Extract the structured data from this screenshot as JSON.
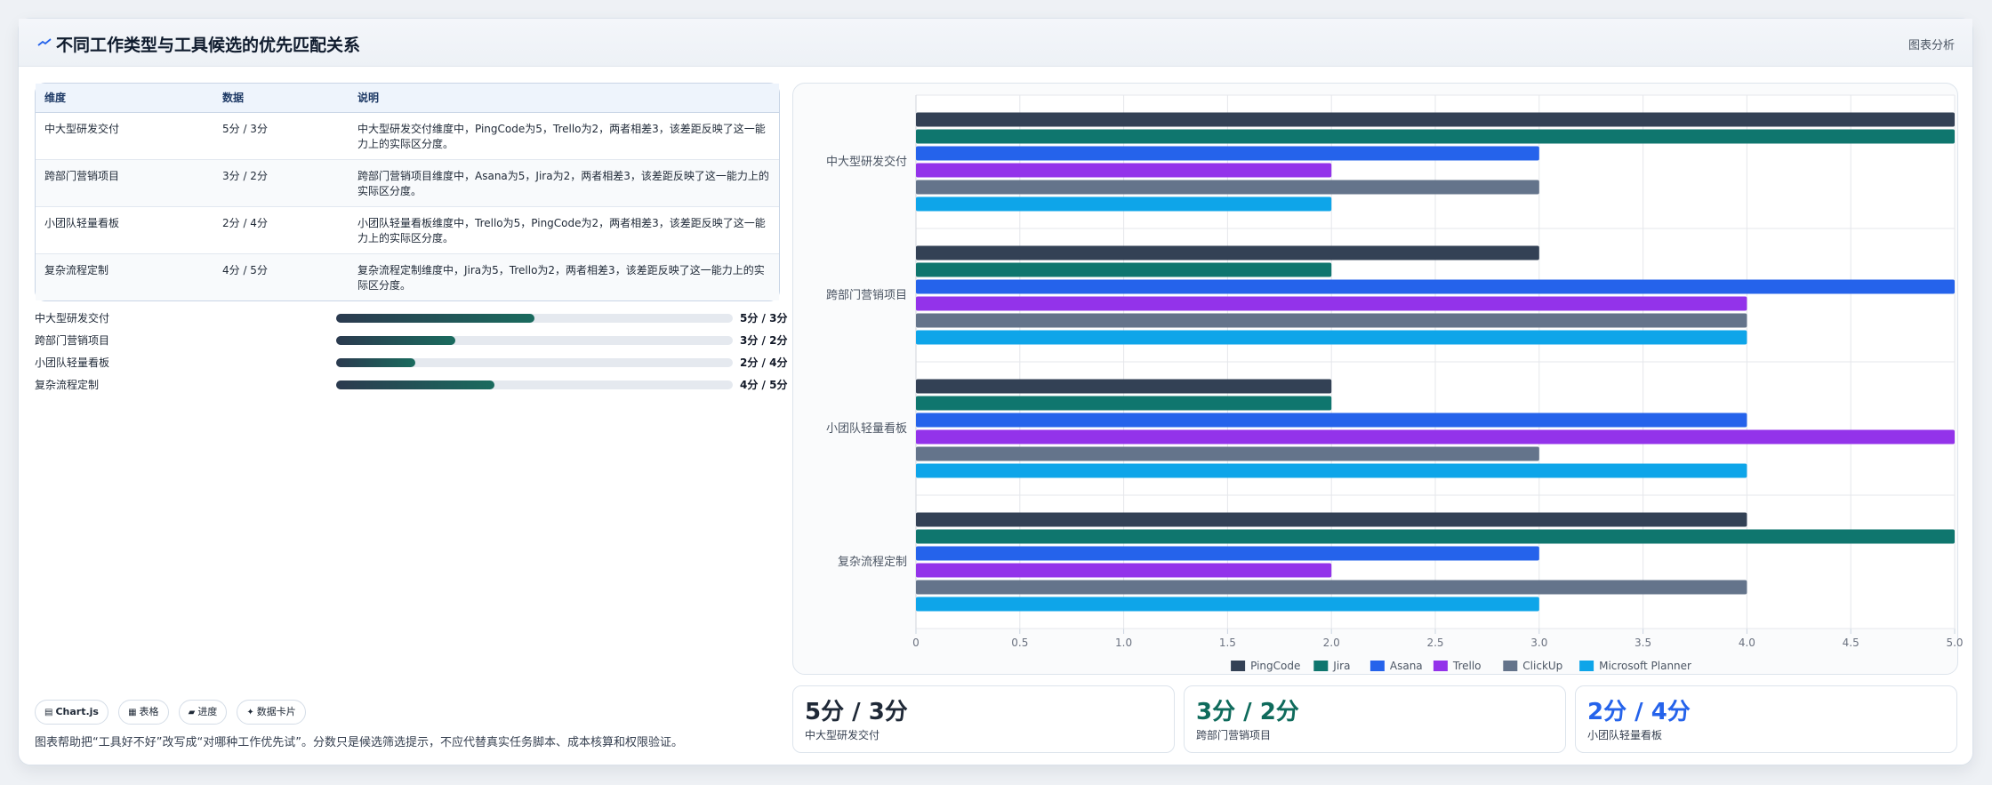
{
  "header": {
    "title": "不同工作类型与工具候选的优先匹配关系",
    "analysis_label": "图表分析"
  },
  "table": {
    "headers": [
      "维度",
      "数据",
      "说明"
    ],
    "rows": [
      {
        "dim": "中大型研发交付",
        "data": "5分 / 3分",
        "desc": "中大型研发交付维度中，PingCode为5，Trello为2，两者相差3，该差距反映了这一能力上的实际区分度。"
      },
      {
        "dim": "跨部门营销项目",
        "data": "3分 / 2分",
        "desc": "跨部门营销项目维度中，Asana为5，Jira为2，两者相差3，该差距反映了这一能力上的实际区分度。"
      },
      {
        "dim": "小团队轻量看板",
        "data": "2分 / 4分",
        "desc": "小团队轻量看板维度中，Trello为5，PingCode为2，两者相差3，该差距反映了这一能力上的实际区分度。"
      },
      {
        "dim": "复杂流程定制",
        "data": "4分 / 5分",
        "desc": "复杂流程定制维度中，Jira为5，Trello为2，两者相差3，该差距反映了这一能力上的实际区分度。"
      }
    ]
  },
  "progress": [
    {
      "label": "中大型研发交付",
      "value": "5分 / 3分",
      "fraction": 0.5
    },
    {
      "label": "跨部门营销项目",
      "value": "3分 / 2分",
      "fraction": 0.3
    },
    {
      "label": "小团队轻量看板",
      "value": "2分 / 4分",
      "fraction": 0.2
    },
    {
      "label": "复杂流程定制",
      "value": "4分 / 5分",
      "fraction": 0.4
    }
  ],
  "pills": [
    {
      "icon": "chart-icon",
      "glyph": "▤",
      "label": "Chart.js"
    },
    {
      "icon": "table-icon",
      "glyph": "▦",
      "label": "表格"
    },
    {
      "icon": "progress-icon",
      "glyph": "▰",
      "label": "进度"
    },
    {
      "icon": "card-icon",
      "glyph": "✦",
      "label": "数据卡片"
    }
  ],
  "footnote": "图表帮助把“工具好不好”改写成“对哪种工作优先试”。分数只是候选筛选提示，不应代替真实任务脚本、成本核算和权限验证。",
  "stats": [
    {
      "value": "5分 / 3分",
      "label": "中大型研发交付",
      "color": "#1f2937"
    },
    {
      "value": "3分 / 2分",
      "label": "跨部门营销项目",
      "color": "#0f6b5c"
    },
    {
      "value": "2分 / 4分",
      "label": "小团队轻量看板",
      "color": "#2563eb"
    }
  ],
  "chart_data": {
    "type": "bar",
    "orientation": "horizontal",
    "categories": [
      "中大型研发交付",
      "跨部门营销项目",
      "小团队轻量看板",
      "复杂流程定制"
    ],
    "series": [
      {
        "name": "PingCode",
        "color": "#334155",
        "values": [
          5,
          3,
          2,
          4
        ]
      },
      {
        "name": "Jira",
        "color": "#0f766e",
        "values": [
          5,
          2,
          2,
          5
        ]
      },
      {
        "name": "Asana",
        "color": "#2563eb",
        "values": [
          3,
          5,
          4,
          3
        ]
      },
      {
        "name": "Trello",
        "color": "#9333ea",
        "values": [
          2,
          4,
          5,
          2
        ]
      },
      {
        "name": "ClickUp",
        "color": "#64748b",
        "values": [
          3,
          4,
          3,
          4
        ]
      },
      {
        "name": "Microsoft Planner",
        "color": "#0ea5e9",
        "values": [
          2,
          4,
          4,
          3
        ]
      }
    ],
    "xlim": [
      0,
      5
    ],
    "xticks": [
      "0",
      "0.5",
      "1.0",
      "1.5",
      "2.0",
      "2.5",
      "3.0",
      "3.5",
      "4.0",
      "4.5",
      "5.0"
    ],
    "grid": true,
    "legend": "bottom"
  }
}
